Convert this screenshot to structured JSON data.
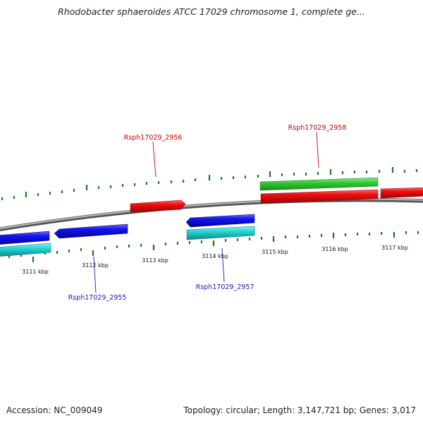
{
  "header": {
    "title": "Rhodobacter sphaeroides ATCC 17029 chromosome 1, complete ge..."
  },
  "footer": {
    "accession": "Accession: NC_009049",
    "summary": "Topology: circular; Length: 3,147,721 bp; Genes: 3,017"
  },
  "colors": {
    "backbone": "#8a8a8a",
    "tick": "#1a7a1a",
    "forward_gene": "#e80000",
    "reverse_gene": "#1010e0",
    "forward_cds": "#33cc33",
    "reverse_cds": "#22d4d4",
    "forward_label": "#cc0000",
    "reverse_label": "#1a1aaa"
  },
  "map": {
    "tick_labels": [
      "3111 kbp",
      "3112 kbp",
      "3113 kbp",
      "3114 kbp",
      "3115 kbp",
      "3116 kbp",
      "3117 kbp"
    ],
    "gene_labels": [
      "Rsph17029_2956",
      "Rsph17029_2958",
      "Rsph17029_2955",
      "Rsph17029_2957"
    ]
  }
}
